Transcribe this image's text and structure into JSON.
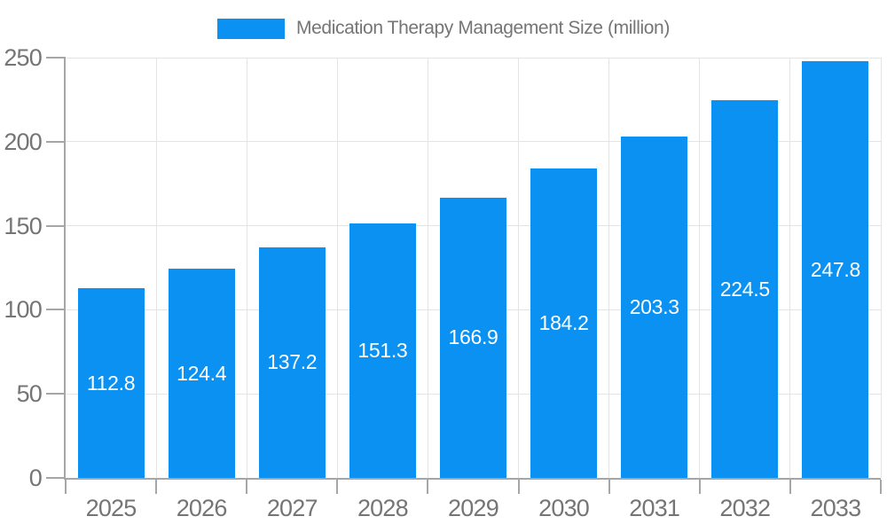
{
  "legend": {
    "label": "Medication Therapy Management Size (million)"
  },
  "chart_data": {
    "type": "bar",
    "title": "",
    "xlabel": "",
    "ylabel": "",
    "categories": [
      "2025",
      "2026",
      "2027",
      "2028",
      "2029",
      "2030",
      "2031",
      "2032",
      "2033"
    ],
    "series": [
      {
        "name": "Medication Therapy Management Size (million)",
        "values": [
          112.8,
          124.4,
          137.2,
          151.3,
          166.9,
          184.2,
          203.3,
          224.5,
          247.8
        ],
        "value_labels": [
          "112.8",
          "124.4",
          "137.2",
          "151.3",
          "166.9",
          "184.2",
          "203.3",
          "224.5",
          "247.8"
        ]
      }
    ],
    "ylim": [
      0,
      250
    ],
    "yticks": [
      0,
      50,
      100,
      150,
      200,
      250
    ],
    "ytick_labels": [
      "0",
      "50",
      "100",
      "150",
      "200",
      "250"
    ],
    "grid": true,
    "legend_position": "top"
  },
  "colors": {
    "bar": "#0a91f2",
    "value_label": "#ffffff",
    "axis": "#a6a6a6",
    "gridline": "#e4e4e4",
    "text": "#757575"
  }
}
